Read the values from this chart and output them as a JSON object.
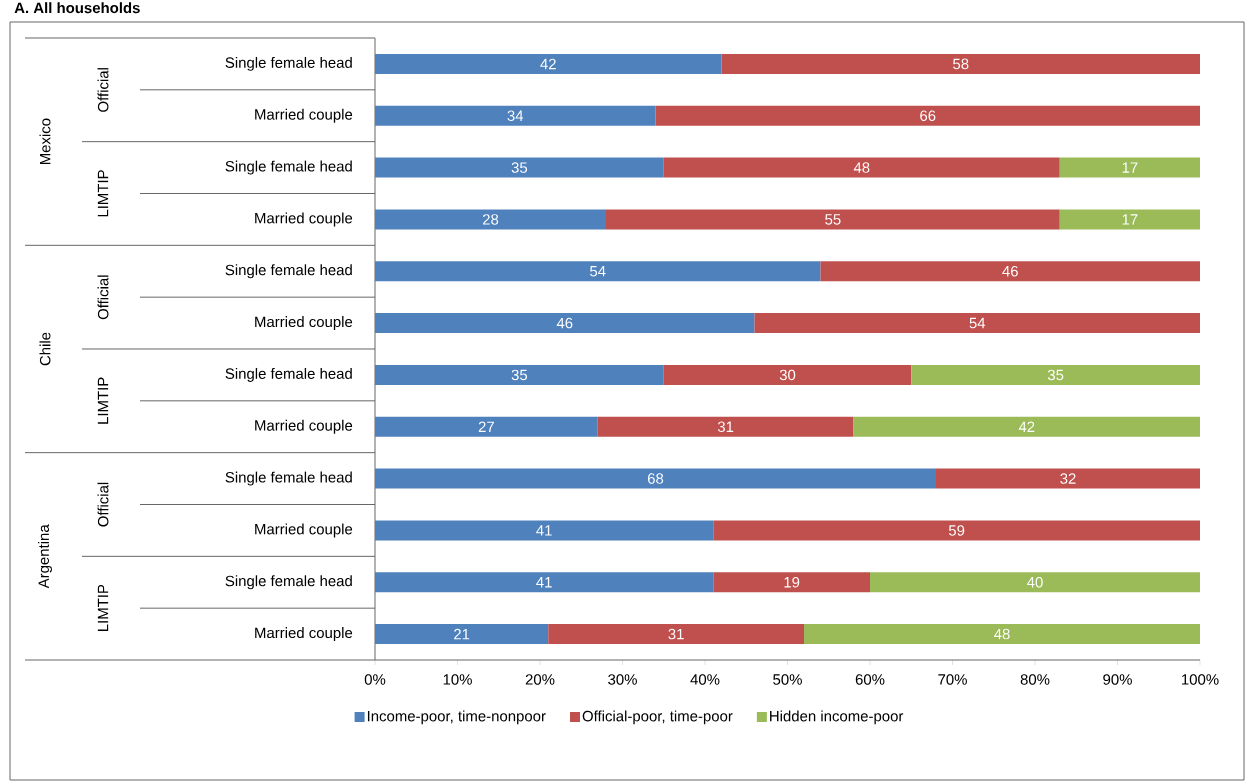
{
  "chart_data": {
    "type": "bar",
    "orientation": "horizontal",
    "stacked": true,
    "title": "A. All households",
    "categories": [
      "Single female head",
      "Married couple",
      "Single female head",
      "Married couple",
      "Single female head",
      "Married couple",
      "Single female head",
      "Married couple",
      "Single female head",
      "Married couple",
      "Single female head",
      "Married couple"
    ],
    "annotations": [
      "Mexico",
      "Official",
      "LIMTIP",
      "Chile",
      "Official",
      "LIMTIP",
      "Argentina",
      "Official",
      "LIMTIP"
    ],
    "series": [
      {
        "name": "Income-poor, time-nonpoor",
        "color": "#4f81bd",
        "values": [
          42,
          34,
          35,
          28,
          54,
          46,
          35,
          27,
          68,
          41,
          41,
          21
        ]
      },
      {
        "name": "Official-poor, time-poor",
        "color": "#c0504d",
        "values": [
          58,
          66,
          48,
          55,
          46,
          54,
          30,
          31,
          32,
          59,
          19,
          31
        ]
      },
      {
        "name": "Hidden income-poor",
        "color": "#9bbb59",
        "values": [
          null,
          null,
          17,
          17,
          null,
          null,
          35,
          42,
          null,
          null,
          40,
          48
        ]
      }
    ],
    "data_labels": true,
    "xlim": [
      0,
      100
    ],
    "xticks": [
      {
        "value": 0,
        "label": "0%"
      },
      {
        "value": 10,
        "label": "10%"
      },
      {
        "value": 20,
        "label": "20%"
      },
      {
        "value": 30,
        "label": "30%"
      },
      {
        "value": 40,
        "label": "40%"
      },
      {
        "value": 50,
        "label": "50%"
      },
      {
        "value": 60,
        "label": "60%"
      },
      {
        "value": 70,
        "label": "70%"
      },
      {
        "value": 80,
        "label": "80%"
      },
      {
        "value": 90,
        "label": "90%"
      },
      {
        "value": 100,
        "label": "100%"
      }
    ],
    "legend": "bottom"
  }
}
